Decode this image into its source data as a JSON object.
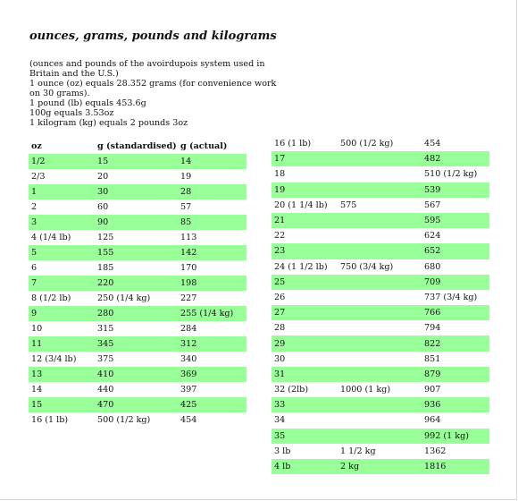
{
  "title": "ounces, grams, pounds and kilograms",
  "intro": [
    "(ounces and pounds of the avoirdupois system used in",
    "Britain and the U.S.)",
    "1 ounce (oz) equals 28.352 grams (for convenience work",
    "on 30 grams).",
    "1 pound (lb) equals 453.6g",
    "100g equals 3.53oz",
    "1 kilogram (kg) equals 2 pounds 3oz"
  ],
  "highlight_color": "#99ff99",
  "left_table": {
    "headers": [
      "oz",
      "g (standardised)",
      "g (actual)"
    ],
    "rows": [
      [
        "1/2",
        "15",
        "14"
      ],
      [
        "2/3",
        "20",
        "19"
      ],
      [
        "1",
        "30",
        "28"
      ],
      [
        "2",
        "60",
        "57"
      ],
      [
        "3",
        "90",
        "85"
      ],
      [
        "4 (1/4 lb)",
        "125",
        "113"
      ],
      [
        "5",
        "155",
        "142"
      ],
      [
        "6",
        "185",
        "170"
      ],
      [
        "7",
        "220",
        "198"
      ],
      [
        "8 (1/2 lb)",
        "250 (1/4 kg)",
        "227"
      ],
      [
        "9",
        "280",
        "255 (1/4 kg)"
      ],
      [
        "10",
        "315",
        "284"
      ],
      [
        "11",
        "345",
        "312"
      ],
      [
        "12 (3/4 lb)",
        "375",
        "340"
      ],
      [
        "13",
        "410",
        "369"
      ],
      [
        "14",
        "440",
        "397"
      ],
      [
        "15",
        "470",
        "425"
      ],
      [
        "16 (1 lb)",
        "500 (1/2 kg)",
        "454"
      ]
    ]
  },
  "right_table": {
    "rows": [
      [
        "16 (1 lb)",
        "500 (1/2 kg)",
        "454"
      ],
      [
        "17",
        "",
        "482"
      ],
      [
        "18",
        "",
        "510 (1/2 kg)"
      ],
      [
        "19",
        "",
        "539"
      ],
      [
        "20 (1 1/4 lb)",
        "575",
        "567"
      ],
      [
        "21",
        "",
        "595"
      ],
      [
        "22",
        "",
        "624"
      ],
      [
        "23",
        "",
        "652"
      ],
      [
        "24 (1 1/2 lb)",
        "750 (3/4 kg)",
        "680"
      ],
      [
        "25",
        "",
        "709"
      ],
      [
        "26",
        "",
        "737 (3/4 kg)"
      ],
      [
        "27",
        "",
        "766"
      ],
      [
        "28",
        "",
        "794"
      ],
      [
        "29",
        "",
        "822"
      ],
      [
        "30",
        "",
        "851"
      ],
      [
        "31",
        "",
        "879"
      ],
      [
        "32 (2lb)",
        "1000 (1 kg)",
        "907"
      ],
      [
        "33",
        "",
        "936"
      ],
      [
        "34",
        "",
        "964"
      ],
      [
        "35",
        "",
        "992 (1 kg)"
      ],
      [
        "3 lb",
        "1 1/2 kg",
        "1362"
      ],
      [
        "4 lb",
        "2 kg",
        "1816"
      ]
    ]
  }
}
